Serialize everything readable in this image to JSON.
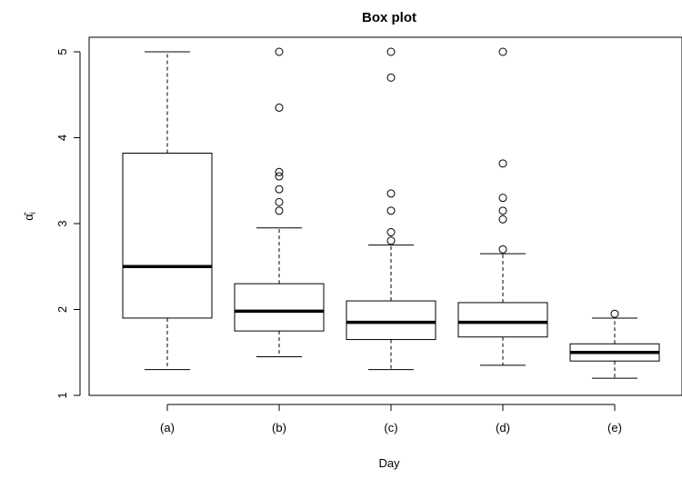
{
  "chart_data": {
    "type": "boxplot",
    "title": "Box plot",
    "xlabel": "Day",
    "ylabel": "α̂ᵢ",
    "ylim": [
      1,
      5
    ],
    "y_ticks": [
      1,
      2,
      3,
      4,
      5
    ],
    "grid": false,
    "categories": [
      "(a)",
      "(b)",
      "(c)",
      "(d)",
      "(e)"
    ],
    "boxes": [
      {
        "category": "(a)",
        "whisker_low": 1.3,
        "q1": 1.9,
        "median": 2.5,
        "q3": 3.82,
        "whisker_high": 5.0,
        "outliers": []
      },
      {
        "category": "(b)",
        "whisker_low": 1.45,
        "q1": 1.75,
        "median": 1.98,
        "q3": 2.3,
        "whisker_high": 2.95,
        "outliers": [
          3.15,
          3.25,
          3.4,
          3.55,
          3.6,
          4.35,
          5.0
        ]
      },
      {
        "category": "(c)",
        "whisker_low": 1.3,
        "q1": 1.65,
        "median": 1.85,
        "q3": 2.1,
        "whisker_high": 2.75,
        "outliers": [
          2.8,
          2.9,
          3.15,
          3.35,
          4.7,
          5.0
        ]
      },
      {
        "category": "(d)",
        "whisker_low": 1.35,
        "q1": 1.68,
        "median": 1.85,
        "q3": 2.08,
        "whisker_high": 2.65,
        "outliers": [
          2.7,
          3.05,
          3.15,
          3.3,
          3.7,
          5.0
        ]
      },
      {
        "category": "(e)",
        "whisker_low": 1.2,
        "q1": 1.4,
        "median": 1.5,
        "q3": 1.6,
        "whisker_high": 1.9,
        "outliers": [
          1.95
        ]
      }
    ]
  }
}
